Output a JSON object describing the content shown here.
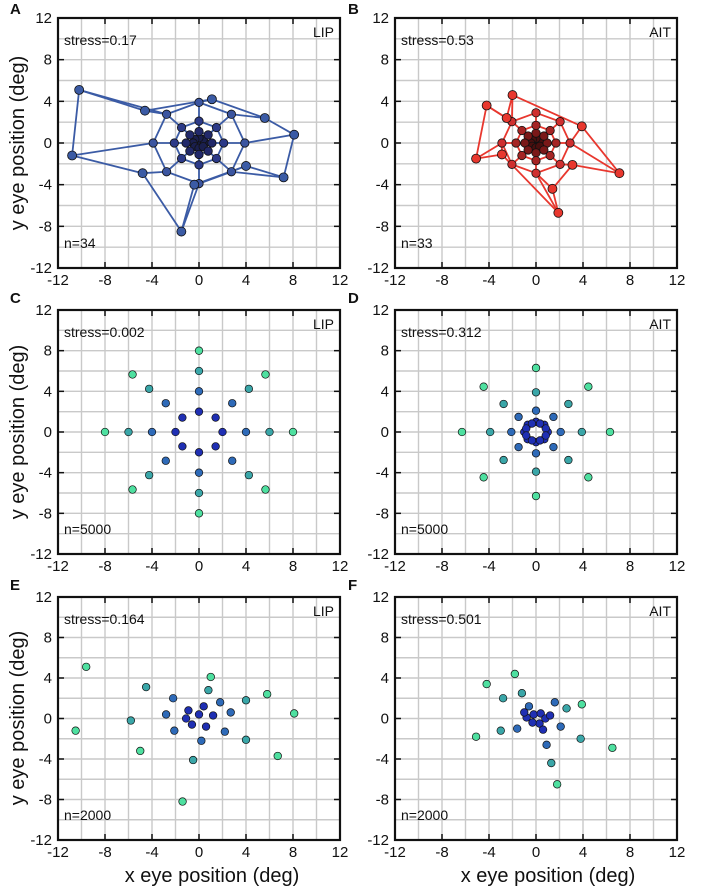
{
  "figure": {
    "x_axis_label": "x eye position (deg)",
    "y_axis_label": "y eye position (deg)",
    "tick_values": [
      -12,
      -8,
      -4,
      0,
      4,
      8,
      12
    ],
    "tick_labels": [
      "-12",
      "-8",
      "-4",
      "0",
      "4",
      "8",
      "12"
    ]
  },
  "chart_data": [
    {
      "type": "network",
      "panel": "A",
      "region": "LIP",
      "stress_text": "stress=0.17",
      "n_text": "n=34",
      "xlim": [
        -12,
        12
      ],
      "ylim": [
        -12,
        12
      ],
      "grid": true,
      "node_color": "#3b5ba5",
      "edge_color": "#3b5ba5",
      "rings": [
        {
          "radius": 0.5,
          "color": "#1a1f4e"
        },
        {
          "radius": 1.1,
          "color": "#22296a"
        },
        {
          "radius": 2.1,
          "color": "#2c3a88"
        },
        {
          "radius": 3.9,
          "color": "#3b55a0"
        }
      ],
      "outer_nodes": [
        {
          "x": -10.2,
          "y": 5.1
        },
        {
          "x": 1.1,
          "y": 4.2
        },
        {
          "x": 8.1,
          "y": 0.8
        },
        {
          "x": 7.2,
          "y": -3.3
        },
        {
          "x": -1.5,
          "y": -8.5
        },
        {
          "x": -10.8,
          "y": -1.2
        },
        {
          "x": -4.8,
          "y": -2.9
        },
        {
          "x": 5.6,
          "y": 2.4
        },
        {
          "x": -4.6,
          "y": 3.1
        },
        {
          "x": 4.0,
          "y": -2.2
        },
        {
          "x": -0.4,
          "y": -4.0
        }
      ]
    },
    {
      "type": "network",
      "panel": "B",
      "region": "AIT",
      "stress_text": "stress=0.53",
      "n_text": "n=33",
      "xlim": [
        -12,
        12
      ],
      "ylim": [
        -12,
        12
      ],
      "grid": true,
      "node_color": "#e8372e",
      "edge_color": "#e8372e",
      "rings": [
        {
          "radius": 0.45,
          "color": "#4a0f0f"
        },
        {
          "radius": 0.95,
          "color": "#7a1818"
        },
        {
          "radius": 1.7,
          "color": "#a52424"
        },
        {
          "radius": 2.9,
          "color": "#cf2f2f"
        }
      ],
      "outer_nodes": [
        {
          "x": -4.2,
          "y": 3.6
        },
        {
          "x": -2.0,
          "y": 4.6
        },
        {
          "x": -5.1,
          "y": -1.5
        },
        {
          "x": 7.1,
          "y": -2.9
        },
        {
          "x": 1.9,
          "y": -6.7
        },
        {
          "x": 3.9,
          "y": 1.6
        },
        {
          "x": -2.9,
          "y": -1.1
        },
        {
          "x": 1.4,
          "y": -4.4
        },
        {
          "x": 3.1,
          "y": -2.1
        },
        {
          "x": -2.5,
          "y": 2.4
        }
      ]
    },
    {
      "type": "scatter",
      "panel": "C",
      "region": "LIP",
      "stress_text": "stress=0.002",
      "n_text": "n=5000",
      "xlim": [
        -12,
        12
      ],
      "ylim": [
        -12,
        12
      ],
      "grid": true,
      "radii": [
        2,
        4,
        6,
        8
      ],
      "n_angles": 8,
      "ring_colors": [
        "#1f2fb3",
        "#2e6ab8",
        "#3aa6a8",
        "#4ee0a0"
      ]
    },
    {
      "type": "scatter",
      "panel": "D",
      "region": "AIT",
      "stress_text": "stress=0.312",
      "n_text": "n=5000",
      "xlim": [
        -12,
        12
      ],
      "ylim": [
        -12,
        12
      ],
      "grid": true,
      "radii": [
        1.0,
        2.1,
        3.9,
        6.3
      ],
      "n_angles": 8,
      "extra_inner_radius": 0.9,
      "extra_inner_angles": [
        22.5,
        67.5,
        112.5,
        157.5,
        202.5,
        247.5,
        292.5,
        337.5
      ],
      "ring_colors": [
        "#1f2fb3",
        "#2e6ab8",
        "#3aa6a8",
        "#4ee0a0"
      ]
    },
    {
      "type": "scatter",
      "panel": "E",
      "region": "LIP",
      "stress_text": "stress=0.164",
      "n_text": "n=2000",
      "xlim": [
        -12,
        12
      ],
      "ylim": [
        -12,
        12
      ],
      "grid": true,
      "points": [
        {
          "x": -9.6,
          "y": 5.1,
          "ring": 3
        },
        {
          "x": -10.5,
          "y": -1.2,
          "ring": 3
        },
        {
          "x": 1.0,
          "y": 4.1,
          "ring": 3
        },
        {
          "x": 8.1,
          "y": 0.5,
          "ring": 3
        },
        {
          "x": 6.7,
          "y": -3.7,
          "ring": 3
        },
        {
          "x": -1.4,
          "y": -8.2,
          "ring": 3
        },
        {
          "x": -5.0,
          "y": -3.2,
          "ring": 3
        },
        {
          "x": 5.8,
          "y": 2.4,
          "ring": 3
        },
        {
          "x": -4.5,
          "y": 3.1,
          "ring": 2
        },
        {
          "x": -5.8,
          "y": -0.2,
          "ring": 2
        },
        {
          "x": 0.8,
          "y": 2.8,
          "ring": 2
        },
        {
          "x": 4.0,
          "y": -2.1,
          "ring": 2
        },
        {
          "x": -0.5,
          "y": -4.1,
          "ring": 2
        },
        {
          "x": 4.0,
          "y": 1.8,
          "ring": 2
        },
        {
          "x": -2.2,
          "y": 2.0,
          "ring": 1
        },
        {
          "x": -2.8,
          "y": 0.4,
          "ring": 1
        },
        {
          "x": -2.1,
          "y": -1.2,
          "ring": 1
        },
        {
          "x": 2.7,
          "y": 0.6,
          "ring": 1
        },
        {
          "x": 2.2,
          "y": -1.3,
          "ring": 1
        },
        {
          "x": 0.2,
          "y": -2.2,
          "ring": 1
        },
        {
          "x": -0.9,
          "y": 0.8,
          "ring": 0
        },
        {
          "x": 0.4,
          "y": 1.2,
          "ring": 0
        },
        {
          "x": 1.2,
          "y": 0.3,
          "ring": 0
        },
        {
          "x": 0.6,
          "y": -0.8,
          "ring": 0
        },
        {
          "x": -0.6,
          "y": -0.6,
          "ring": 0
        },
        {
          "x": -1.1,
          "y": 0.0,
          "ring": 0
        },
        {
          "x": 0.0,
          "y": 0.4,
          "ring": 0
        },
        {
          "x": 1.8,
          "y": 1.6,
          "ring": 1
        }
      ],
      "ring_colors": [
        "#1f2fb3",
        "#2e6ab8",
        "#3aa6a8",
        "#4ee0a0"
      ]
    },
    {
      "type": "scatter",
      "panel": "F",
      "region": "AIT",
      "stress_text": "stress=0.501",
      "n_text": "n=2000",
      "xlim": [
        -12,
        12
      ],
      "ylim": [
        -12,
        12
      ],
      "grid": true,
      "points": [
        {
          "x": -4.2,
          "y": 3.4,
          "ring": 3
        },
        {
          "x": -1.8,
          "y": 4.4,
          "ring": 3
        },
        {
          "x": -5.1,
          "y": -1.8,
          "ring": 3
        },
        {
          "x": 6.5,
          "y": -2.9,
          "ring": 3
        },
        {
          "x": 1.8,
          "y": -6.5,
          "ring": 3
        },
        {
          "x": 3.9,
          "y": 1.4,
          "ring": 3
        },
        {
          "x": -1.2,
          "y": 2.5,
          "ring": 2
        },
        {
          "x": -2.8,
          "y": 2.0,
          "ring": 2
        },
        {
          "x": 2.6,
          "y": 1.0,
          "ring": 2
        },
        {
          "x": 3.8,
          "y": -2.0,
          "ring": 2
        },
        {
          "x": 1.3,
          "y": -4.4,
          "ring": 2
        },
        {
          "x": -3.0,
          "y": -1.2,
          "ring": 2
        },
        {
          "x": -1.6,
          "y": -1.0,
          "ring": 1
        },
        {
          "x": 2.1,
          "y": -0.8,
          "ring": 1
        },
        {
          "x": 0.9,
          "y": -2.6,
          "ring": 1
        },
        {
          "x": 1.6,
          "y": 1.6,
          "ring": 1
        },
        {
          "x": -0.6,
          "y": 1.2,
          "ring": 1
        },
        {
          "x": -0.2,
          "y": 0.4,
          "ring": 0
        },
        {
          "x": 0.4,
          "y": 0.5,
          "ring": 0
        },
        {
          "x": 0.8,
          "y": 0.0,
          "ring": 0
        },
        {
          "x": 0.3,
          "y": -0.5,
          "ring": 0
        },
        {
          "x": -0.3,
          "y": -0.4,
          "ring": 0
        },
        {
          "x": -0.8,
          "y": 0.1,
          "ring": 0
        },
        {
          "x": 1.2,
          "y": 0.3,
          "ring": 0
        },
        {
          "x": -1.0,
          "y": 0.6,
          "ring": 0
        },
        {
          "x": 0.6,
          "y": -1.1,
          "ring": 0
        }
      ],
      "ring_colors": [
        "#1f2fb3",
        "#2e6ab8",
        "#3aa6a8",
        "#4ee0a0"
      ]
    }
  ]
}
